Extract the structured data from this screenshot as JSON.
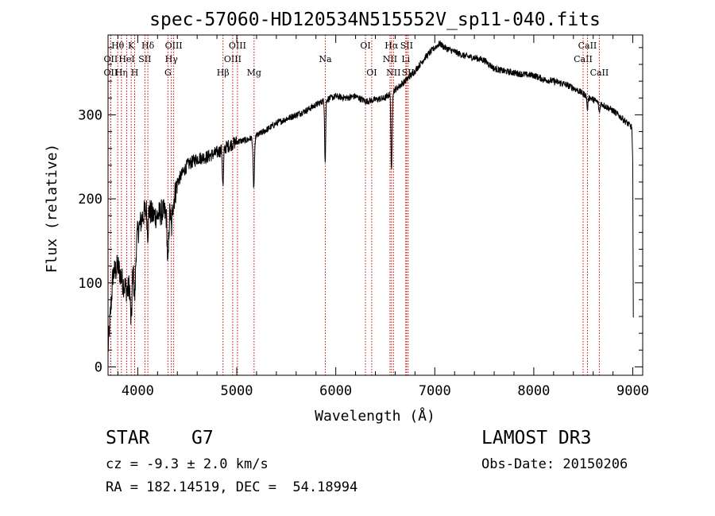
{
  "chart_data": {
    "type": "line",
    "title": "spec-57060-HD120534N515552V_sp11-040.fits",
    "xlabel": "Wavelength (Å)",
    "ylabel": "Flux (relative)",
    "xlim": [
      3700,
      9100
    ],
    "ylim": [
      -10,
      395
    ],
    "x_ticks": [
      4000,
      5000,
      6000,
      7000,
      8000,
      9000
    ],
    "y_ticks": [
      0,
      100,
      200,
      300
    ],
    "line_color": "#000000",
    "marker_color": "#cc0000",
    "continuum": [
      [
        3700,
        20
      ],
      [
        3720,
        55
      ],
      [
        3750,
        110
      ],
      [
        3800,
        120
      ],
      [
        3850,
        100
      ],
      [
        3900,
        90
      ],
      [
        3950,
        125
      ],
      [
        4000,
        160
      ],
      [
        4050,
        180
      ],
      [
        4100,
        190
      ],
      [
        4150,
        180
      ],
      [
        4200,
        180
      ],
      [
        4250,
        185
      ],
      [
        4300,
        180
      ],
      [
        4350,
        190
      ],
      [
        4400,
        220
      ],
      [
        4500,
        240
      ],
      [
        4600,
        248
      ],
      [
        4700,
        250
      ],
      [
        4800,
        255
      ],
      [
        4900,
        262
      ],
      [
        5000,
        268
      ],
      [
        5100,
        270
      ],
      [
        5200,
        275
      ],
      [
        5300,
        282
      ],
      [
        5400,
        290
      ],
      [
        5500,
        295
      ],
      [
        5600,
        300
      ],
      [
        5700,
        305
      ],
      [
        5800,
        312
      ],
      [
        5900,
        318
      ],
      [
        6000,
        322
      ],
      [
        6100,
        320
      ],
      [
        6200,
        322
      ],
      [
        6300,
        316
      ],
      [
        6400,
        318
      ],
      [
        6500,
        320
      ],
      [
        6600,
        330
      ],
      [
        6700,
        340
      ],
      [
        6800,
        352
      ],
      [
        6900,
        368
      ],
      [
        7000,
        380
      ],
      [
        7050,
        385
      ],
      [
        7100,
        380
      ],
      [
        7200,
        375
      ],
      [
        7300,
        370
      ],
      [
        7400,
        368
      ],
      [
        7500,
        365
      ],
      [
        7600,
        355
      ],
      [
        7700,
        352
      ],
      [
        7800,
        350
      ],
      [
        7900,
        348
      ],
      [
        8000,
        347
      ],
      [
        8100,
        342
      ],
      [
        8200,
        340
      ],
      [
        8300,
        337
      ],
      [
        8400,
        332
      ],
      [
        8500,
        325
      ],
      [
        8600,
        318
      ],
      [
        8700,
        312
      ],
      [
        8800,
        305
      ],
      [
        8900,
        295
      ],
      [
        8990,
        285
      ],
      [
        9000,
        240
      ],
      [
        9005,
        55
      ]
    ],
    "absorption_features": [
      {
        "x": 3934,
        "depth": 60,
        "width": 12
      },
      {
        "x": 3969,
        "depth": 55,
        "width": 12
      },
      {
        "x": 4101,
        "depth": 30,
        "width": 8
      },
      {
        "x": 4305,
        "depth": 60,
        "width": 10
      },
      {
        "x": 4340,
        "depth": 25,
        "width": 8
      },
      {
        "x": 4861,
        "depth": 45,
        "width": 8
      },
      {
        "x": 5172,
        "depth": 60,
        "width": 10
      },
      {
        "x": 5893,
        "depth": 75,
        "width": 7
      },
      {
        "x": 6563,
        "depth": 95,
        "width": 8
      },
      {
        "x": 8542,
        "depth": 15,
        "width": 8
      },
      {
        "x": 8662,
        "depth": 12,
        "width": 8
      }
    ],
    "line_markers": [
      {
        "x": 3727,
        "label": "OII",
        "row": 1
      },
      {
        "x": 3727,
        "label": "OII",
        "row": 2
      },
      {
        "x": 3798,
        "label": "Hθ",
        "row": 0
      },
      {
        "x": 3835,
        "label": "Hη",
        "row": 2
      },
      {
        "x": 3889,
        "label": "HeI",
        "row": 1
      },
      {
        "x": 3934,
        "label": "K",
        "row": 0
      },
      {
        "x": 3969,
        "label": "H",
        "row": 2
      },
      {
        "x": 4072,
        "label": "SII",
        "row": 1
      },
      {
        "x": 4102,
        "label": "Hδ",
        "row": 0
      },
      {
        "x": 4305,
        "label": "G",
        "row": 2
      },
      {
        "x": 4340,
        "label": "Hγ",
        "row": 1
      },
      {
        "x": 4363,
        "label": "OIII",
        "row": 0
      },
      {
        "x": 4861,
        "label": "Hβ",
        "row": 2
      },
      {
        "x": 4959,
        "label": "OIII",
        "row": 1
      },
      {
        "x": 5007,
        "label": "OIII",
        "row": 0
      },
      {
        "x": 5175,
        "label": "Mg",
        "row": 2
      },
      {
        "x": 5894,
        "label": "Na",
        "row": 1
      },
      {
        "x": 6300,
        "label": "OI",
        "row": 0
      },
      {
        "x": 6363,
        "label": "OI",
        "row": 2
      },
      {
        "x": 6548,
        "label": "NII",
        "row": 1
      },
      {
        "x": 6563,
        "label": "Hα",
        "row": 0
      },
      {
        "x": 6583,
        "label": "NII",
        "row": 2
      },
      {
        "x": 6707,
        "label": "Li",
        "row": 1
      },
      {
        "x": 6716,
        "label": "SII",
        "row": 0
      },
      {
        "x": 6731,
        "label": "SII",
        "row": 2
      },
      {
        "x": 8498,
        "label": "CaII",
        "row": 1
      },
      {
        "x": 8542,
        "label": "CaII",
        "row": 0
      },
      {
        "x": 8662,
        "label": "CaII",
        "row": 2
      }
    ]
  },
  "info": {
    "object_class": "STAR",
    "subclass": "G7",
    "survey": "LAMOST DR3",
    "redshift": "cz = -9.3 ± 2.0 km/s",
    "obs_date": "Obs-Date: 20150206",
    "coords": "RA = 182.14519, DEC =  54.18994"
  }
}
